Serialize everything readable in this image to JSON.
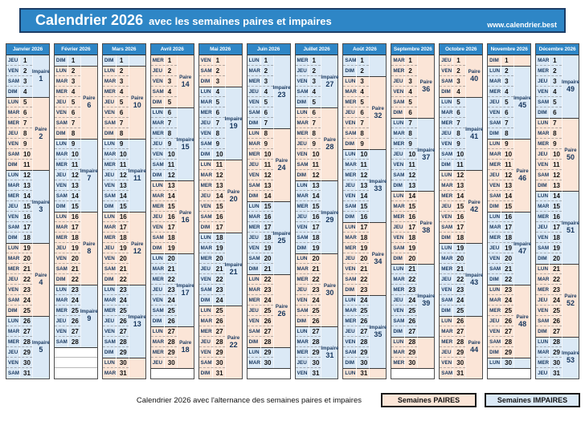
{
  "page": {
    "title_main": "Calendrier 2026",
    "title_rest": "avec les semaines paires et impaires",
    "website": "www.calendrier.best",
    "footer_caption": "Calendrier 2026 avec l'alternance des semaines paires et impaires",
    "legend": {
      "paire": "Semaines PAIRES",
      "impaire": "Semaines IMPAIRES"
    }
  },
  "colors": {
    "banner_bg": "#2E86C6",
    "banner_border": "#1C3E67",
    "month_header_bg": "#2E86C6",
    "paire_bg": "#FBE5D7",
    "impaire_bg": "#DBE9F6",
    "navy_text": "#17375E"
  },
  "dow": [
    "LUN",
    "MAR",
    "MER",
    "JEU",
    "VEN",
    "SAM",
    "DIM"
  ],
  "parity_labels": {
    "paire": "Paire",
    "impaire": "Impaire"
  },
  "months": [
    {
      "name": "Janvier 2026",
      "start": 3,
      "days": 31,
      "weeks": [
        {
          "n": 1,
          "p": "impaire",
          "from": 1,
          "to": 4,
          "show": true
        },
        {
          "n": 2,
          "p": "paire",
          "from": 5,
          "to": 11,
          "show": true
        },
        {
          "n": 3,
          "p": "impaire",
          "from": 12,
          "to": 18,
          "show": true
        },
        {
          "n": 4,
          "p": "paire",
          "from": 19,
          "to": 25,
          "show": true
        },
        {
          "n": 5,
          "p": "impaire",
          "from": 26,
          "to": 31,
          "show": true
        }
      ]
    },
    {
      "name": "Février 2026",
      "start": 6,
      "days": 28,
      "weeks": [
        {
          "n": 5,
          "p": "impaire",
          "from": 1,
          "to": 1,
          "show": false
        },
        {
          "n": 6,
          "p": "paire",
          "from": 2,
          "to": 8,
          "show": true
        },
        {
          "n": 7,
          "p": "impaire",
          "from": 9,
          "to": 15,
          "show": true
        },
        {
          "n": 8,
          "p": "paire",
          "from": 16,
          "to": 22,
          "show": true
        },
        {
          "n": 9,
          "p": "impaire",
          "from": 23,
          "to": 28,
          "show": true
        }
      ]
    },
    {
      "name": "Mars 2026",
      "start": 6,
      "days": 31,
      "weeks": [
        {
          "n": 9,
          "p": "impaire",
          "from": 1,
          "to": 1,
          "show": false
        },
        {
          "n": 10,
          "p": "paire",
          "from": 2,
          "to": 8,
          "show": true
        },
        {
          "n": 11,
          "p": "impaire",
          "from": 9,
          "to": 15,
          "show": true
        },
        {
          "n": 12,
          "p": "paire",
          "from": 16,
          "to": 22,
          "show": true
        },
        {
          "n": 13,
          "p": "impaire",
          "from": 23,
          "to": 29,
          "show": true
        },
        {
          "n": 14,
          "p": "paire",
          "from": 30,
          "to": 31,
          "show": false
        }
      ]
    },
    {
      "name": "Avril 2026",
      "start": 2,
      "days": 30,
      "weeks": [
        {
          "n": 14,
          "p": "paire",
          "from": 1,
          "to": 5,
          "show": true
        },
        {
          "n": 15,
          "p": "impaire",
          "from": 6,
          "to": 12,
          "show": true
        },
        {
          "n": 16,
          "p": "paire",
          "from": 13,
          "to": 19,
          "show": true
        },
        {
          "n": 17,
          "p": "impaire",
          "from": 20,
          "to": 26,
          "show": true
        },
        {
          "n": 18,
          "p": "paire",
          "from": 27,
          "to": 30,
          "show": true
        }
      ]
    },
    {
      "name": "Mai 2026",
      "start": 4,
      "days": 31,
      "weeks": [
        {
          "n": 18,
          "p": "paire",
          "from": 1,
          "to": 3,
          "show": false
        },
        {
          "n": 19,
          "p": "impaire",
          "from": 4,
          "to": 10,
          "show": true
        },
        {
          "n": 20,
          "p": "paire",
          "from": 11,
          "to": 17,
          "show": true
        },
        {
          "n": 21,
          "p": "impaire",
          "from": 18,
          "to": 24,
          "show": true
        },
        {
          "n": 22,
          "p": "paire",
          "from": 25,
          "to": 31,
          "show": true
        }
      ]
    },
    {
      "name": "Juin 2026",
      "start": 0,
      "days": 30,
      "weeks": [
        {
          "n": 23,
          "p": "impaire",
          "from": 1,
          "to": 7,
          "show": true
        },
        {
          "n": 24,
          "p": "paire",
          "from": 8,
          "to": 14,
          "show": true
        },
        {
          "n": 25,
          "p": "impaire",
          "from": 15,
          "to": 21,
          "show": true
        },
        {
          "n": 26,
          "p": "paire",
          "from": 22,
          "to": 28,
          "show": true
        },
        {
          "n": 27,
          "p": "impaire",
          "from": 29,
          "to": 30,
          "show": false
        }
      ]
    },
    {
      "name": "Juillet 2026",
      "start": 2,
      "days": 31,
      "weeks": [
        {
          "n": 27,
          "p": "impaire",
          "from": 1,
          "to": 5,
          "show": true
        },
        {
          "n": 28,
          "p": "paire",
          "from": 6,
          "to": 12,
          "show": true
        },
        {
          "n": 29,
          "p": "impaire",
          "from": 13,
          "to": 19,
          "show": true
        },
        {
          "n": 30,
          "p": "paire",
          "from": 20,
          "to": 26,
          "show": true
        },
        {
          "n": 31,
          "p": "impaire",
          "from": 27,
          "to": 31,
          "show": true
        }
      ]
    },
    {
      "name": "Août 2026",
      "start": 5,
      "days": 31,
      "weeks": [
        {
          "n": 31,
          "p": "impaire",
          "from": 1,
          "to": 2,
          "show": false
        },
        {
          "n": 32,
          "p": "paire",
          "from": 3,
          "to": 9,
          "show": true
        },
        {
          "n": 33,
          "p": "impaire",
          "from": 10,
          "to": 16,
          "show": true
        },
        {
          "n": 34,
          "p": "paire",
          "from": 17,
          "to": 23,
          "show": true
        },
        {
          "n": 35,
          "p": "impaire",
          "from": 24,
          "to": 30,
          "show": true
        },
        {
          "n": 36,
          "p": "paire",
          "from": 31,
          "to": 31,
          "show": false
        }
      ]
    },
    {
      "name": "Septembre 2026",
      "start": 1,
      "days": 30,
      "weeks": [
        {
          "n": 36,
          "p": "paire",
          "from": 1,
          "to": 6,
          "show": true
        },
        {
          "n": 37,
          "p": "impaire",
          "from": 7,
          "to": 13,
          "show": true
        },
        {
          "n": 38,
          "p": "paire",
          "from": 14,
          "to": 20,
          "show": true
        },
        {
          "n": 39,
          "p": "impaire",
          "from": 21,
          "to": 27,
          "show": true
        },
        {
          "n": 40,
          "p": "paire",
          "from": 28,
          "to": 30,
          "show": false
        }
      ]
    },
    {
      "name": "Octobre 2026",
      "start": 3,
      "days": 31,
      "weeks": [
        {
          "n": 40,
          "p": "paire",
          "from": 1,
          "to": 4,
          "show": true
        },
        {
          "n": 41,
          "p": "impaire",
          "from": 5,
          "to": 11,
          "show": true
        },
        {
          "n": 42,
          "p": "paire",
          "from": 12,
          "to": 18,
          "show": true
        },
        {
          "n": 43,
          "p": "impaire",
          "from": 19,
          "to": 25,
          "show": true
        },
        {
          "n": 44,
          "p": "paire",
          "from": 26,
          "to": 31,
          "show": true
        }
      ]
    },
    {
      "name": "Novembre 2026",
      "start": 6,
      "days": 30,
      "weeks": [
        {
          "n": 44,
          "p": "paire",
          "from": 1,
          "to": 1,
          "show": false
        },
        {
          "n": 45,
          "p": "impaire",
          "from": 2,
          "to": 8,
          "show": true
        },
        {
          "n": 46,
          "p": "paire",
          "from": 9,
          "to": 15,
          "show": true
        },
        {
          "n": 47,
          "p": "impaire",
          "from": 16,
          "to": 22,
          "show": true
        },
        {
          "n": 48,
          "p": "paire",
          "from": 23,
          "to": 29,
          "show": true
        },
        {
          "n": 49,
          "p": "impaire",
          "from": 30,
          "to": 30,
          "show": false
        }
      ]
    },
    {
      "name": "Décembre 2026",
      "start": 1,
      "days": 31,
      "weeks": [
        {
          "n": 49,
          "p": "impaire",
          "from": 1,
          "to": 6,
          "show": true
        },
        {
          "n": 50,
          "p": "paire",
          "from": 7,
          "to": 13,
          "show": true
        },
        {
          "n": 51,
          "p": "impaire",
          "from": 14,
          "to": 20,
          "show": true
        },
        {
          "n": 52,
          "p": "paire",
          "from": 21,
          "to": 27,
          "show": true
        },
        {
          "n": 53,
          "p": "impaire",
          "from": 28,
          "to": 31,
          "show": true
        }
      ]
    }
  ]
}
